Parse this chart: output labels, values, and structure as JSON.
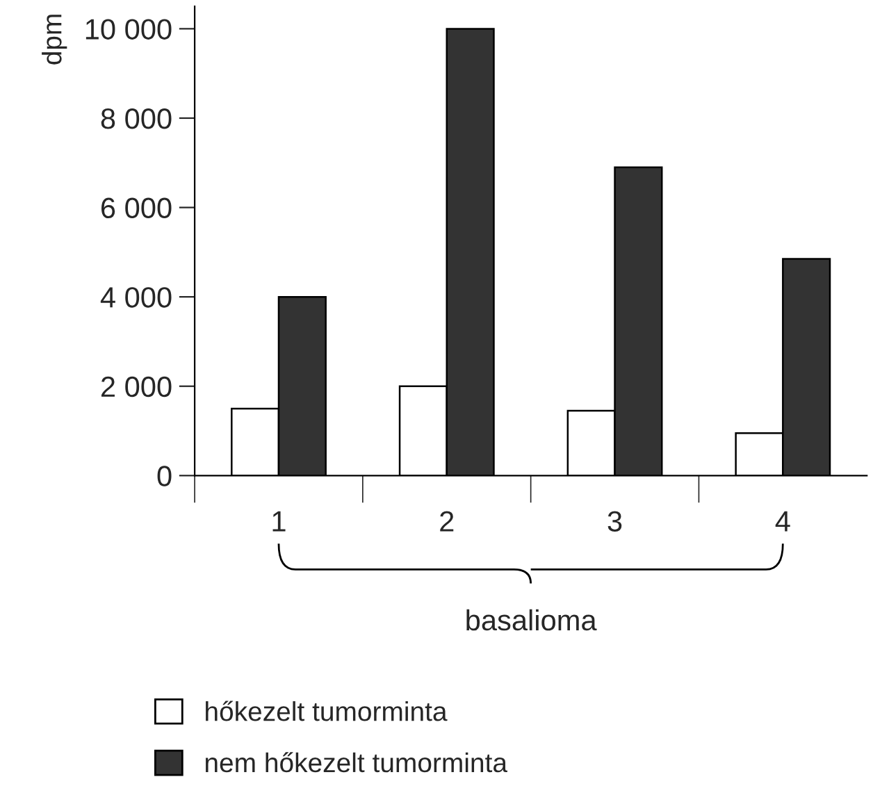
{
  "chart_data": {
    "type": "bar",
    "ylabel": "dpm",
    "xlabel": "basalioma",
    "categories": [
      "1",
      "2",
      "3",
      "4"
    ],
    "series": [
      {
        "name": "hőkezelt tumorminta",
        "color": "#ffffff",
        "values": [
          1500,
          2000,
          1450,
          950
        ]
      },
      {
        "name": "nem hőkezelt tumorminta",
        "color": "#333333",
        "values": [
          4000,
          10000,
          6900,
          4850
        ]
      }
    ],
    "ylim": [
      0,
      10500
    ],
    "yticks": [
      0,
      {
        "value": 2000,
        "label": "2 000"
      },
      {
        "value": 4000,
        "label": "4 000"
      },
      {
        "value": 6000,
        "label": "6 000"
      },
      {
        "value": 8000,
        "label": "8 000"
      },
      {
        "value": 10000,
        "label": "10 000"
      }
    ],
    "grid": false,
    "legend": "bottom"
  }
}
